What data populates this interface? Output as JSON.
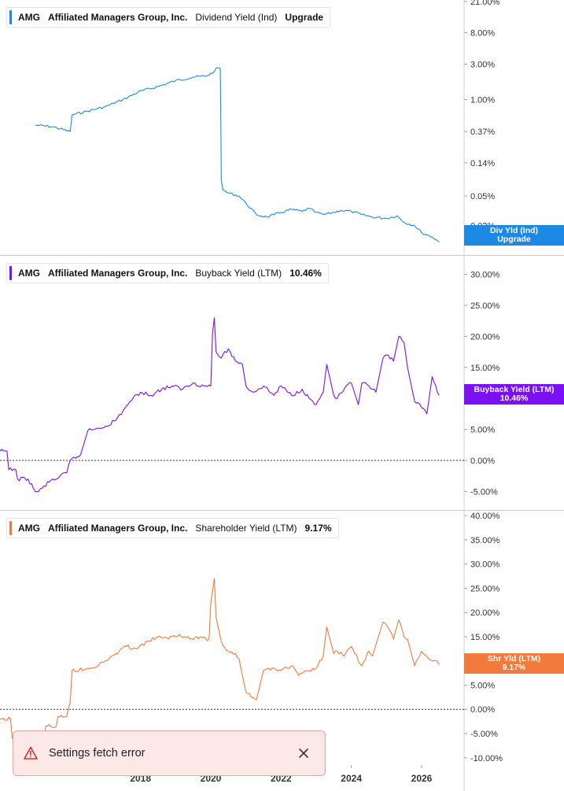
{
  "chart_data": [
    {
      "type": "line",
      "panel": "top",
      "ticker": "AMG",
      "company": "Affiliated Managers Group, Inc.",
      "metric": "Dividend Yield (Ind)",
      "legend_value": "Upgrade",
      "tag_lines": [
        "Div Yld (Ind)",
        "Upgrade"
      ],
      "color": "#1e88e5",
      "scale": "log",
      "ylim": [
        0.008,
        22
      ],
      "yticks": [
        21,
        8,
        3,
        1,
        0.37,
        0.14,
        0.05,
        0.02
      ],
      "ytick_labels": [
        "21.00%",
        "8.00%",
        "3.00%",
        "1.00%",
        "0.37%",
        "0.14%",
        "0.05%",
        "0.02%"
      ],
      "zero_line": false,
      "series": [
        {
          "x": [
            2015.0,
            2015.5,
            2016.0,
            2016.05,
            2016.5,
            2017.0,
            2017.5,
            2018.0,
            2018.5,
            2019.0,
            2019.5,
            2019.9,
            2020.1,
            2020.2,
            2020.27,
            2020.3,
            2020.35,
            2020.5,
            2020.8,
            2021.0,
            2021.3,
            2021.6,
            2021.8,
            2022.0,
            2022.3,
            2022.6,
            2022.8,
            2023.0,
            2023.2,
            2023.5,
            2023.7,
            2024.0,
            2024.3,
            2024.6,
            2025.0,
            2025.3,
            2025.5,
            2025.8,
            2026.0,
            2026.3,
            2026.5
          ],
          "y": [
            0.45,
            0.43,
            0.37,
            0.62,
            0.7,
            0.8,
            1.0,
            1.3,
            1.5,
            1.8,
            2.0,
            2.1,
            2.4,
            2.7,
            2.6,
            0.08,
            0.06,
            0.055,
            0.05,
            0.04,
            0.028,
            0.026,
            0.028,
            0.03,
            0.033,
            0.031,
            0.034,
            0.03,
            0.028,
            0.03,
            0.032,
            0.031,
            0.028,
            0.026,
            0.025,
            0.027,
            0.022,
            0.02,
            0.016,
            0.014,
            0.012
          ]
        }
      ]
    },
    {
      "type": "line",
      "panel": "middle",
      "ticker": "AMG",
      "company": "Affiliated Managers Group, Inc.",
      "metric": "Buyback Yield (LTM)",
      "legend_value": "10.46%",
      "tag_lines": [
        "Buyback Yield (LTM)",
        "10.46%"
      ],
      "color": "#7b0ff5",
      "scale": "linear",
      "ylim": [
        -8,
        33
      ],
      "yticks": [
        30,
        25,
        20,
        15,
        10,
        5,
        0,
        -5
      ],
      "ytick_labels": [
        "30.00%",
        "25.00%",
        "20.00%",
        "15.00%",
        "10.00%",
        "5.00%",
        "0.00%",
        "-5.00%"
      ],
      "zero_line": true,
      "series": [
        {
          "x": [
            2014.0,
            2014.2,
            2014.25,
            2014.45,
            2014.5,
            2014.8,
            2015.0,
            2015.1,
            2015.5,
            2015.6,
            2015.9,
            2016.0,
            2016.3,
            2016.5,
            2016.8,
            2017.0,
            2017.3,
            2017.5,
            2017.7,
            2018.0,
            2018.3,
            2018.6,
            2018.9,
            2019.2,
            2019.5,
            2019.8,
            2020.0,
            2020.05,
            2020.1,
            2020.15,
            2020.3,
            2020.5,
            2020.7,
            2020.9,
            2021.0,
            2021.2,
            2021.5,
            2021.8,
            2022.0,
            2022.3,
            2022.6,
            2022.8,
            2023.0,
            2023.2,
            2023.3,
            2023.5,
            2023.6,
            2023.8,
            2024.0,
            2024.2,
            2024.3,
            2024.5,
            2024.7,
            2024.9,
            2025.0,
            2025.2,
            2025.35,
            2025.5,
            2025.6,
            2025.8,
            2026.0,
            2026.15,
            2026.3,
            2026.5
          ],
          "y": [
            1.5,
            1.5,
            -1.5,
            -1.5,
            -3.0,
            -3.0,
            -5.0,
            -5.0,
            -3.0,
            -3.0,
            -2.0,
            0.0,
            1.0,
            4.8,
            5.2,
            5.5,
            6.5,
            8.0,
            9.5,
            11.0,
            10.5,
            11.5,
            12.0,
            11.5,
            12.5,
            12.0,
            12.0,
            20.5,
            23.0,
            17.5,
            16.5,
            18.0,
            16.0,
            15.5,
            12.0,
            11.0,
            12.0,
            10.5,
            12.0,
            10.5,
            11.5,
            10.0,
            9.0,
            11.0,
            15.5,
            10.5,
            10.0,
            11.5,
            12.5,
            9.0,
            12.5,
            12.0,
            11.0,
            16.5,
            17.0,
            16.0,
            20.0,
            19.0,
            15.0,
            9.5,
            8.5,
            7.5,
            13.5,
            10.5
          ]
        }
      ]
    },
    {
      "type": "line",
      "panel": "bottom",
      "ticker": "AMG",
      "company": "Affiliated Managers Group, Inc.",
      "metric": "Shareholder Yield (LTM)",
      "legend_value": "9.17%",
      "tag_lines": [
        "Shr Yld (LTM)",
        "9.17%"
      ],
      "color": "#f27a3d",
      "scale": "linear",
      "ylim": [
        -11.5,
        41
      ],
      "yticks": [
        40,
        35,
        30,
        25,
        20,
        15,
        10,
        5,
        0,
        -5,
        -10
      ],
      "ytick_labels": [
        "40.00%",
        "35.00%",
        "30.00%",
        "25.00%",
        "20.00%",
        "15.00%",
        "10.00%",
        "5.00%",
        "0.00%",
        "-5.00%",
        "-10.00%"
      ],
      "zero_line": true,
      "series": [
        {
          "x": [
            2014.0,
            2014.3,
            2014.35,
            2014.6,
            2014.65,
            2014.95,
            2015.0,
            2015.2,
            2015.3,
            2015.6,
            2015.65,
            2015.9,
            2016.0,
            2016.05,
            2016.5,
            2016.8,
            2017.0,
            2017.3,
            2017.6,
            2017.9,
            2018.2,
            2018.5,
            2018.8,
            2019.1,
            2019.4,
            2019.7,
            2019.95,
            2020.0,
            2020.1,
            2020.15,
            2020.3,
            2020.5,
            2020.7,
            2020.8,
            2021.0,
            2021.2,
            2021.3,
            2021.5,
            2021.8,
            2022.0,
            2022.3,
            2022.5,
            2022.8,
            2023.0,
            2023.2,
            2023.3,
            2023.5,
            2023.6,
            2023.8,
            2024.0,
            2024.1,
            2024.3,
            2024.5,
            2024.6,
            2024.9,
            2025.0,
            2025.2,
            2025.35,
            2025.5,
            2025.6,
            2025.8,
            2026.0,
            2026.2,
            2026.4,
            2026.5
          ],
          "y": [
            -2.0,
            -2.0,
            -6.0,
            -6.0,
            -8.0,
            -8.0,
            -9.0,
            -9.0,
            -3.5,
            -3.5,
            -1.5,
            -1.5,
            1.5,
            8.0,
            8.5,
            9.0,
            10.0,
            11.5,
            13.0,
            12.5,
            14.0,
            15.0,
            14.5,
            15.5,
            14.5,
            15.0,
            14.5,
            22.0,
            27.0,
            19.0,
            14.0,
            12.0,
            11.5,
            10.5,
            3.5,
            2.5,
            2.0,
            8.0,
            8.5,
            8.0,
            9.0,
            7.0,
            8.0,
            8.5,
            11.0,
            17.0,
            11.5,
            12.0,
            11.0,
            13.0,
            11.5,
            9.0,
            12.0,
            11.0,
            18.0,
            17.5,
            14.5,
            18.5,
            15.0,
            14.5,
            9.0,
            12.0,
            10.5,
            10.0,
            9.2
          ]
        }
      ]
    }
  ],
  "x_axis": {
    "xlim": [
      2014.0,
      2027.03
    ],
    "ticks": [
      2018,
      2020,
      2022,
      2024,
      2026
    ],
    "tick_labels": [
      "2018",
      "2020",
      "2022",
      "2024",
      "2026"
    ]
  },
  "toast": {
    "message": "Settings fetch error",
    "icon": "warning-triangle-icon",
    "close_icon": "close-icon"
  }
}
